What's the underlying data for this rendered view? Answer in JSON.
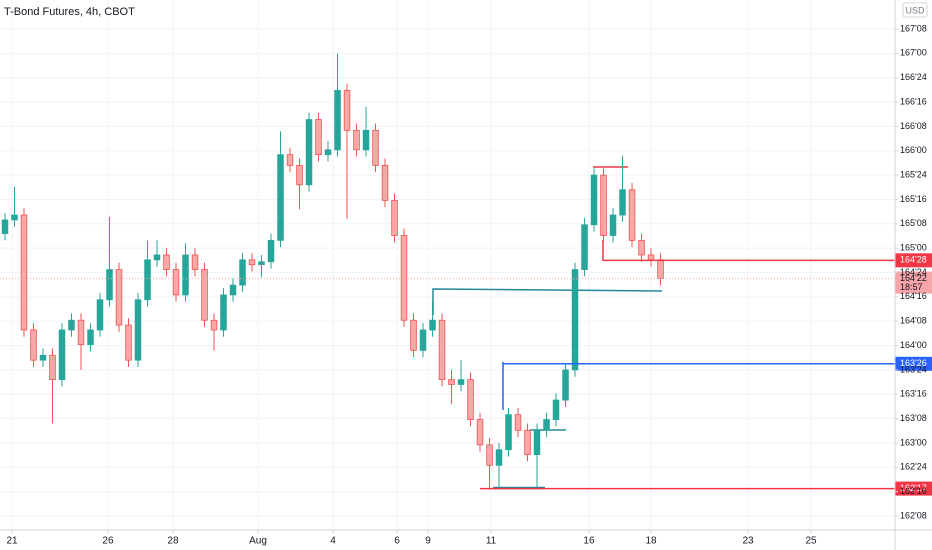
{
  "chart_data": {
    "type": "candlestick",
    "title": "T-Bond Futures, 4h, CBOT",
    "currency": "USD",
    "up_color": "#26a69a",
    "down_color": "#ef5350",
    "grid": true,
    "xlim": [
      -0.526,
      93.68
    ],
    "ylim": [
      162.106,
      167.548
    ],
    "xticks": [
      {
        "value": 0.74,
        "label": "21"
      },
      {
        "value": 10.84,
        "label": "26"
      },
      {
        "value": 17.68,
        "label": "28"
      },
      {
        "value": 26.63,
        "label": "Aug"
      },
      {
        "value": 34.53,
        "label": "4"
      },
      {
        "value": 41.26,
        "label": "6"
      },
      {
        "value": 44.53,
        "label": "9"
      },
      {
        "value": 51.16,
        "label": "11"
      },
      {
        "value": 61.47,
        "label": "16"
      },
      {
        "value": 68.0,
        "label": "18"
      },
      {
        "value": 78.21,
        "label": "23"
      },
      {
        "value": 84.84,
        "label": "25"
      }
    ],
    "yticks": [
      {
        "value": 162.25,
        "label": "162'08"
      },
      {
        "value": 162.5,
        "label": "162'16"
      },
      {
        "value": 162.75,
        "label": "162'24"
      },
      {
        "value": 163.0,
        "label": "163'00"
      },
      {
        "value": 163.25,
        "label": "163'08"
      },
      {
        "value": 163.5,
        "label": "163'16"
      },
      {
        "value": 163.75,
        "label": "163'24"
      },
      {
        "value": 164.0,
        "label": "164'00"
      },
      {
        "value": 164.25,
        "label": "164'08"
      },
      {
        "value": 164.5,
        "label": "164'16"
      },
      {
        "value": 164.75,
        "label": "164'24"
      },
      {
        "value": 165.0,
        "label": "165'00"
      },
      {
        "value": 165.25,
        "label": "165'08"
      },
      {
        "value": 165.5,
        "label": "165'16"
      },
      {
        "value": 165.75,
        "label": "165'24"
      },
      {
        "value": 166.0,
        "label": "166'00"
      },
      {
        "value": 166.25,
        "label": "166'08"
      },
      {
        "value": 166.5,
        "label": "166'16"
      },
      {
        "value": 166.75,
        "label": "166'24"
      },
      {
        "value": 167.0,
        "label": "167'00"
      },
      {
        "value": 167.25,
        "label": "167'08"
      }
    ],
    "price_labels": [
      {
        "value": 164.875,
        "label": "164'28",
        "color": "#f23645"
      },
      {
        "value": 164.6875,
        "label": "164'22",
        "countdown": "18:57",
        "color": "#f7a5a9"
      },
      {
        "value": 163.8125,
        "label": "163'26",
        "color": "#2962ff"
      },
      {
        "value": 162.53125,
        "label": "162'17",
        "color": "#f23645"
      }
    ],
    "open": [
      165.15,
      165.29,
      165.34,
      164.16,
      163.85,
      163.9,
      163.65,
      164.16,
      164.26,
      164.01,
      164.16,
      164.47,
      164.78,
      164.21,
      163.85,
      164.47,
      164.88,
      164.93,
      164.78,
      164.52,
      164.93,
      164.78,
      164.26,
      164.16,
      164.52,
      164.62,
      164.88,
      164.83,
      164.86,
      165.08,
      165.96,
      165.85,
      165.65,
      166.32,
      165.96,
      166.01,
      166.62,
      166.21,
      166.01,
      166.21,
      165.85,
      165.49,
      165.13,
      164.26,
      163.95,
      164.16,
      164.26,
      163.65,
      163.6,
      163.65,
      163.24,
      162.98,
      162.77,
      162.93,
      163.29,
      163.13,
      162.88,
      163.13,
      163.24,
      163.44,
      163.75,
      164.78,
      165.24,
      165.75,
      165.13,
      165.34,
      165.6,
      165.08,
      164.93,
      164.88
    ],
    "high": [
      165.36,
      165.63,
      165.41,
      164.23,
      163.97,
      163.97,
      164.23,
      164.33,
      164.33,
      164.23,
      164.54,
      165.32,
      164.85,
      164.28,
      164.54,
      165.08,
      165.08,
      165.0,
      164.85,
      165.05,
      165.0,
      164.85,
      164.33,
      164.59,
      164.69,
      164.95,
      164.95,
      164.93,
      165.15,
      166.2,
      166.03,
      165.92,
      166.39,
      166.39,
      166.1,
      167.0,
      166.69,
      166.28,
      166.45,
      166.28,
      165.92,
      165.56,
      165.2,
      164.33,
      164.23,
      164.45,
      164.33,
      163.75,
      163.85,
      163.72,
      163.31,
      163.05,
      163.0,
      163.36,
      163.36,
      163.2,
      163.2,
      163.31,
      163.51,
      163.82,
      164.85,
      165.31,
      165.82,
      165.82,
      165.41,
      165.95,
      165.67,
      165.15,
      165.0,
      164.95
    ],
    "low": [
      165.08,
      165.22,
      164.09,
      163.78,
      163.78,
      163.2,
      163.58,
      164.09,
      163.75,
      163.94,
      164.09,
      164.4,
      164.14,
      163.78,
      163.78,
      164.4,
      164.81,
      164.71,
      164.45,
      164.45,
      164.71,
      164.19,
      163.95,
      164.09,
      164.45,
      164.55,
      164.76,
      164.7,
      164.79,
      165.01,
      165.78,
      165.4,
      165.58,
      165.89,
      165.89,
      165.94,
      165.3,
      165.94,
      165.94,
      165.78,
      165.42,
      165.06,
      164.19,
      163.88,
      163.88,
      164.09,
      163.58,
      163.4,
      163.53,
      163.17,
      162.91,
      162.52,
      162.55,
      162.86,
      163.06,
      162.81,
      162.55,
      163.06,
      163.17,
      163.37,
      163.68,
      164.71,
      165.17,
      165.06,
      165.06,
      165.27,
      165.01,
      164.86,
      164.81,
      164.62
    ],
    "close": [
      165.29,
      165.34,
      164.16,
      163.85,
      163.9,
      163.65,
      164.16,
      164.26,
      164.01,
      164.16,
      164.47,
      164.78,
      164.21,
      163.85,
      164.47,
      164.88,
      164.93,
      164.78,
      164.52,
      164.93,
      164.78,
      164.26,
      164.16,
      164.52,
      164.62,
      164.88,
      164.83,
      164.86,
      165.08,
      165.96,
      165.85,
      165.65,
      166.32,
      165.96,
      166.01,
      166.62,
      166.21,
      166.01,
      166.21,
      165.85,
      165.49,
      165.13,
      164.26,
      163.95,
      164.16,
      164.26,
      163.65,
      163.6,
      163.65,
      163.24,
      162.98,
      162.77,
      162.93,
      163.29,
      163.13,
      162.88,
      163.13,
      163.24,
      163.44,
      163.75,
      164.78,
      165.24,
      165.75,
      165.13,
      165.34,
      165.6,
      165.08,
      164.93,
      164.88,
      164.69
    ]
  }
}
